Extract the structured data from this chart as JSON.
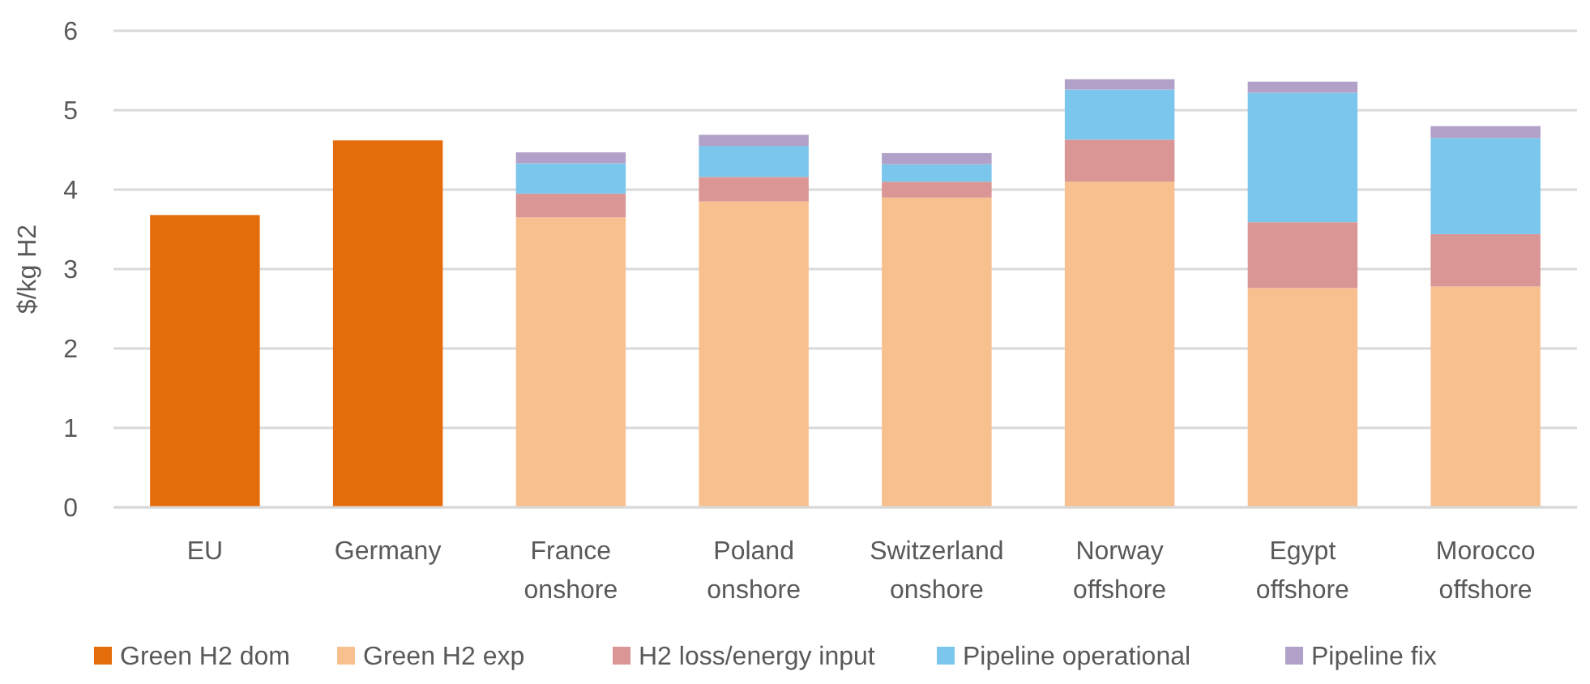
{
  "chart_data": {
    "type": "bar",
    "stacked": true,
    "ylabel": "$/kg H2",
    "categories": [
      "EU",
      "Germany",
      "France onshore",
      "Poland onshore",
      "Switzerland onshore",
      "Norway offshore",
      "Egypt offshore",
      "Morocco offshore"
    ],
    "series": [
      {
        "name": "Green H2 dom",
        "color": "#e46c0a",
        "values": [
          3.68,
          4.62,
          null,
          null,
          null,
          null,
          null,
          null
        ]
      },
      {
        "name": "Green H2 exp",
        "color": "#f9c08f",
        "values": [
          null,
          null,
          3.65,
          3.85,
          3.9,
          4.1,
          2.76,
          2.78
        ]
      },
      {
        "name": "H2 loss/energy input",
        "color": "#d99694",
        "values": [
          null,
          null,
          0.3,
          0.31,
          0.2,
          0.53,
          0.83,
          0.66
        ]
      },
      {
        "name": "Pipeline operational",
        "color": "#7ac6ec",
        "values": [
          null,
          null,
          0.38,
          0.39,
          0.22,
          0.63,
          1.63,
          1.21
        ]
      },
      {
        "name": "Pipeline fix",
        "color": "#b1a0c7",
        "values": [
          null,
          null,
          0.14,
          0.14,
          0.14,
          0.13,
          0.14,
          0.15
        ]
      }
    ],
    "ylim": [
      0,
      6
    ],
    "yticks": [
      0,
      1,
      2,
      3,
      4,
      5,
      6
    ],
    "grid": "y",
    "legend": "bottom"
  }
}
